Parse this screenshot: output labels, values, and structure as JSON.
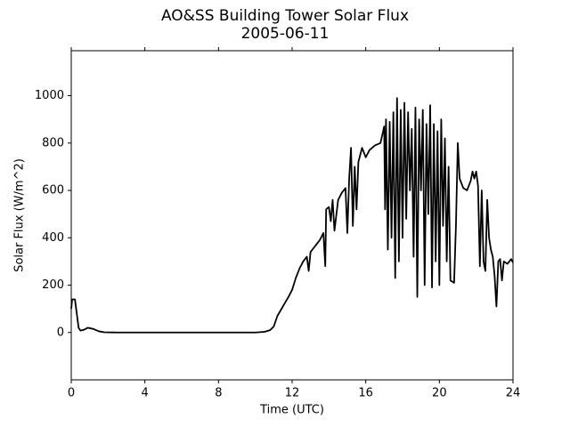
{
  "chart_data": {
    "type": "line",
    "title": "AO&SS Building Tower Solar Flux",
    "subtitle": "2005-06-11",
    "x_label": "Time (UTC)",
    "y_label": "Solar Flux (W/m^2)",
    "xlim": [
      0,
      24
    ],
    "xticks": [
      0,
      4,
      8,
      12,
      16,
      20,
      24
    ],
    "ylim": [
      -200,
      1190
    ],
    "yticks": [
      0,
      200,
      400,
      600,
      800,
      1000
    ],
    "series": [
      {
        "name": "Solar Flux",
        "color": "#000000",
        "x": [
          0,
          0.05,
          0.2,
          0.3,
          0.4,
          0.5,
          0.7,
          0.9,
          1.2,
          1.5,
          1.8,
          2.5,
          5,
          8,
          10,
          10.5,
          10.8,
          11.0,
          11.2,
          11.5,
          11.8,
          12.0,
          12.2,
          12.4,
          12.6,
          12.8,
          12.9,
          13.0,
          13.3,
          13.5,
          13.7,
          13.8,
          13.85,
          14.0,
          14.1,
          14.2,
          14.3,
          14.5,
          14.7,
          14.9,
          15.0,
          15.1,
          15.2,
          15.3,
          15.4,
          15.5,
          15.6,
          15.8,
          16.0,
          16.2,
          16.5,
          16.8,
          17.0,
          17.05,
          17.1,
          17.2,
          17.3,
          17.4,
          17.5,
          17.6,
          17.7,
          17.8,
          17.9,
          18.0,
          18.1,
          18.2,
          18.3,
          18.4,
          18.5,
          18.6,
          18.7,
          18.8,
          18.9,
          19.0,
          19.1,
          19.2,
          19.3,
          19.4,
          19.5,
          19.6,
          19.7,
          19.8,
          19.9,
          20.0,
          20.1,
          20.2,
          20.3,
          20.4,
          20.5,
          20.6,
          20.8,
          20.9,
          21.0,
          21.1,
          21.3,
          21.5,
          21.7,
          21.8,
          21.9,
          22.0,
          22.1,
          22.2,
          22.3,
          22.4,
          22.5,
          22.6,
          22.7,
          22.8,
          22.9,
          23.0,
          23.1,
          23.2,
          23.3,
          23.4,
          23.5,
          23.7,
          23.9,
          24.0
        ],
        "values": [
          100,
          140,
          140,
          80,
          20,
          8,
          12,
          20,
          15,
          5,
          1,
          0,
          0,
          0,
          0,
          3,
          10,
          25,
          70,
          110,
          150,
          180,
          230,
          270,
          300,
          320,
          260,
          340,
          370,
          390,
          420,
          280,
          520,
          530,
          470,
          560,
          430,
          560,
          590,
          610,
          420,
          650,
          780,
          450,
          700,
          520,
          720,
          780,
          740,
          770,
          790,
          800,
          870,
          520,
          900,
          350,
          890,
          400,
          930,
          230,
          990,
          300,
          940,
          400,
          970,
          480,
          930,
          600,
          860,
          320,
          950,
          150,
          900,
          600,
          940,
          200,
          880,
          500,
          960,
          190,
          880,
          300,
          850,
          200,
          900,
          450,
          820,
          300,
          700,
          220,
          210,
          450,
          800,
          650,
          610,
          600,
          640,
          680,
          650,
          680,
          620,
          280,
          600,
          300,
          260,
          560,
          400,
          350,
          320,
          240,
          110,
          300,
          310,
          220,
          300,
          290,
          310,
          295
        ]
      }
    ]
  }
}
